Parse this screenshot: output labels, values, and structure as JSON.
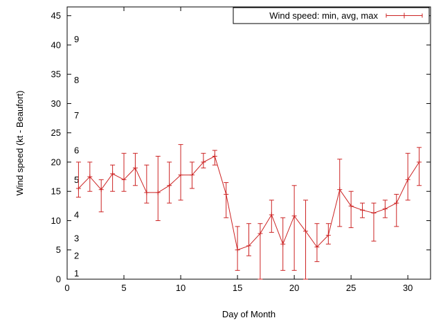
{
  "chart_data": {
    "type": "line",
    "subtype": "yerrorlines",
    "title": "",
    "xlabel": "Day of Month",
    "ylabel": "Wind speed (kt - Beaufort)",
    "legend_label": "Wind speed: min, avg, max",
    "legend_position": "top-right",
    "grid": false,
    "xlim": [
      0,
      32
    ],
    "ylim": [
      0,
      46.5
    ],
    "xticks": [
      0,
      5,
      10,
      15,
      20,
      25,
      30
    ],
    "yticks": [
      0,
      5,
      10,
      15,
      20,
      25,
      30,
      35,
      40,
      45
    ],
    "series_color": "#cc2222",
    "axis_color": "#000000",
    "beaufort_labels": [
      {
        "label": "1",
        "kt": 1
      },
      {
        "label": "2",
        "kt": 4
      },
      {
        "label": "3",
        "kt": 7
      },
      {
        "label": "4",
        "kt": 11
      },
      {
        "label": "5",
        "kt": 17
      },
      {
        "label": "6",
        "kt": 22
      },
      {
        "label": "7",
        "kt": 28
      },
      {
        "label": "8",
        "kt": 34
      },
      {
        "label": "9",
        "kt": 41
      }
    ],
    "points": [
      {
        "day": 1,
        "min": 14,
        "avg": 15.5,
        "max": 20
      },
      {
        "day": 2,
        "min": 15,
        "avg": 17.5,
        "max": 20
      },
      {
        "day": 3,
        "min": 11.5,
        "avg": 15.3,
        "max": 17
      },
      {
        "day": 4,
        "min": 15,
        "avg": 18,
        "max": 19.5
      },
      {
        "day": 5,
        "min": 15,
        "avg": 17,
        "max": 21.5
      },
      {
        "day": 6,
        "min": 16,
        "avg": 19,
        "max": 21.5
      },
      {
        "day": 7,
        "min": 13,
        "avg": 14.8,
        "max": 19.5
      },
      {
        "day": 8,
        "min": 10,
        "avg": 14.8,
        "max": 21
      },
      {
        "day": 9,
        "min": 13,
        "avg": 16,
        "max": 20
      },
      {
        "day": 10,
        "min": 13.5,
        "avg": 17.8,
        "max": 23
      },
      {
        "day": 11,
        "min": 15.5,
        "avg": 17.8,
        "max": 20
      },
      {
        "day": 12,
        "min": 19,
        "avg": 20,
        "max": 21.5
      },
      {
        "day": 13,
        "min": 19.5,
        "avg": 21,
        "max": 22
      },
      {
        "day": 14,
        "min": 10.5,
        "avg": 14.5,
        "max": 16.5
      },
      {
        "day": 15,
        "min": 1.5,
        "avg": 5,
        "max": 9
      },
      {
        "day": 16,
        "min": 4,
        "avg": 5.7,
        "max": 9.5
      },
      {
        "day": 17,
        "min": 0,
        "avg": 7.8,
        "max": 9.5
      },
      {
        "day": 18,
        "min": 8,
        "avg": 11,
        "max": 13.5
      },
      {
        "day": 19,
        "min": 1.5,
        "avg": 6,
        "max": 10.5
      },
      {
        "day": 20,
        "min": 1.5,
        "avg": 10.8,
        "max": 16
      },
      {
        "day": 21,
        "min": 0,
        "avg": 8.2,
        "max": 13.5
      },
      {
        "day": 22,
        "min": 3,
        "avg": 5.5,
        "max": 9.5
      },
      {
        "day": 23,
        "min": 6,
        "avg": 7.5,
        "max": 9.5
      },
      {
        "day": 24,
        "min": 9,
        "avg": 15.3,
        "max": 20.5
      },
      {
        "day": 25,
        "min": 8.8,
        "avg": 12.5,
        "max": 15
      },
      {
        "day": 26,
        "min": 10.5,
        "avg": 11.8,
        "max": 13
      },
      {
        "day": 27,
        "min": 6.5,
        "avg": 11.3,
        "max": 13
      },
      {
        "day": 28,
        "min": 10.5,
        "avg": 12,
        "max": 13.5
      },
      {
        "day": 29,
        "min": 9,
        "avg": 13,
        "max": 14.5
      },
      {
        "day": 30,
        "min": 13.5,
        "avg": 17,
        "max": 21.5
      },
      {
        "day": 31,
        "min": 16,
        "avg": 20,
        "max": 22.5
      }
    ]
  }
}
